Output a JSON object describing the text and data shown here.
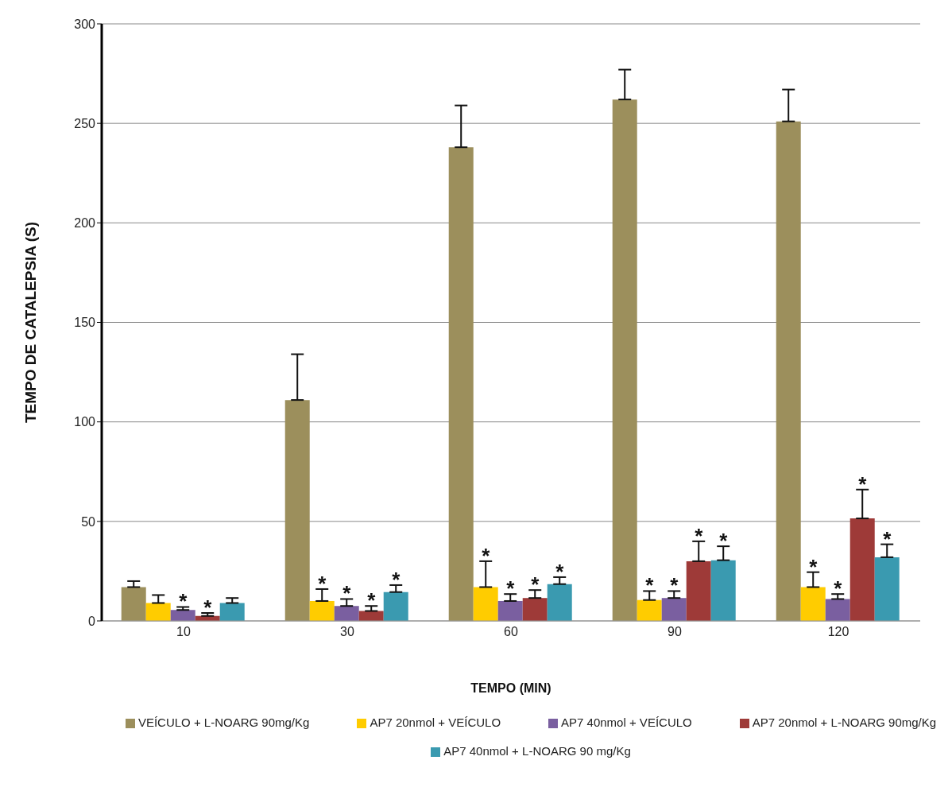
{
  "chart_data": {
    "type": "bar",
    "xlabel": "TEMPO (MIN)",
    "ylabel": "TEMPO DE CATALEPSIA (S)",
    "categories": [
      "10",
      "30",
      "60",
      "90",
      "120"
    ],
    "series": [
      {
        "name": "VEÍCULO + L-NOARG 90mg/Kg",
        "color": "#9c8f5c",
        "values": [
          17,
          111,
          238,
          262,
          251
        ],
        "errors": [
          [
            17,
            20
          ],
          [
            111,
            134
          ],
          [
            238,
            259
          ],
          [
            262,
            277
          ],
          [
            251,
            267
          ]
        ]
      },
      {
        "name": "AP7 20nmol + VEÍCULO",
        "color": "#ffcc00",
        "values": [
          9,
          10,
          17,
          10.5,
          17
        ],
        "errors": [
          [
            9,
            13
          ],
          [
            10,
            16
          ],
          [
            17,
            30
          ],
          [
            10.5,
            15
          ],
          [
            17,
            24.5
          ]
        ],
        "value_labels": [
          null,
          "*",
          "*",
          "*",
          "*"
        ]
      },
      {
        "name": "AP7 40nmol + VEÍCULO",
        "color": "#7a5fa0",
        "values": [
          5.5,
          7.5,
          10,
          11.5,
          11
        ],
        "errors": [
          [
            5.5,
            7
          ],
          [
            7.5,
            11
          ],
          [
            10,
            13.5
          ],
          [
            11.5,
            15
          ],
          [
            11,
            13.5
          ]
        ],
        "value_labels": [
          "*",
          "*",
          "*",
          "*",
          "*"
        ]
      },
      {
        "name": "AP7 20nmol + L-NOARG 90mg/Kg",
        "color": "#9e3a38",
        "values": [
          2.5,
          5,
          11.5,
          30,
          51.5
        ],
        "errors": [
          [
            2.5,
            4
          ],
          [
            5,
            7.5
          ],
          [
            11.5,
            15.5
          ],
          [
            30,
            40
          ],
          [
            51.5,
            66
          ]
        ],
        "value_labels": [
          "*",
          "*",
          "*",
          "*",
          "*"
        ]
      },
      {
        "name": "AP7 40nmol + L-NOARG 90 mg/Kg",
        "color": "#3a9ab0",
        "values": [
          9,
          14.5,
          18.5,
          30.5,
          32
        ],
        "errors": [
          [
            9,
            11.5
          ],
          [
            14.5,
            18
          ],
          [
            18.5,
            22
          ],
          [
            30.5,
            37.5
          ],
          [
            32,
            38.5
          ]
        ],
        "value_labels": [
          null,
          "*",
          "*",
          "*",
          "*"
        ]
      }
    ],
    "ylim": [
      0,
      300
    ],
    "yticks": [
      0,
      50,
      100,
      150,
      200,
      250,
      300
    ],
    "grid": "y",
    "legend": "bottom"
  }
}
